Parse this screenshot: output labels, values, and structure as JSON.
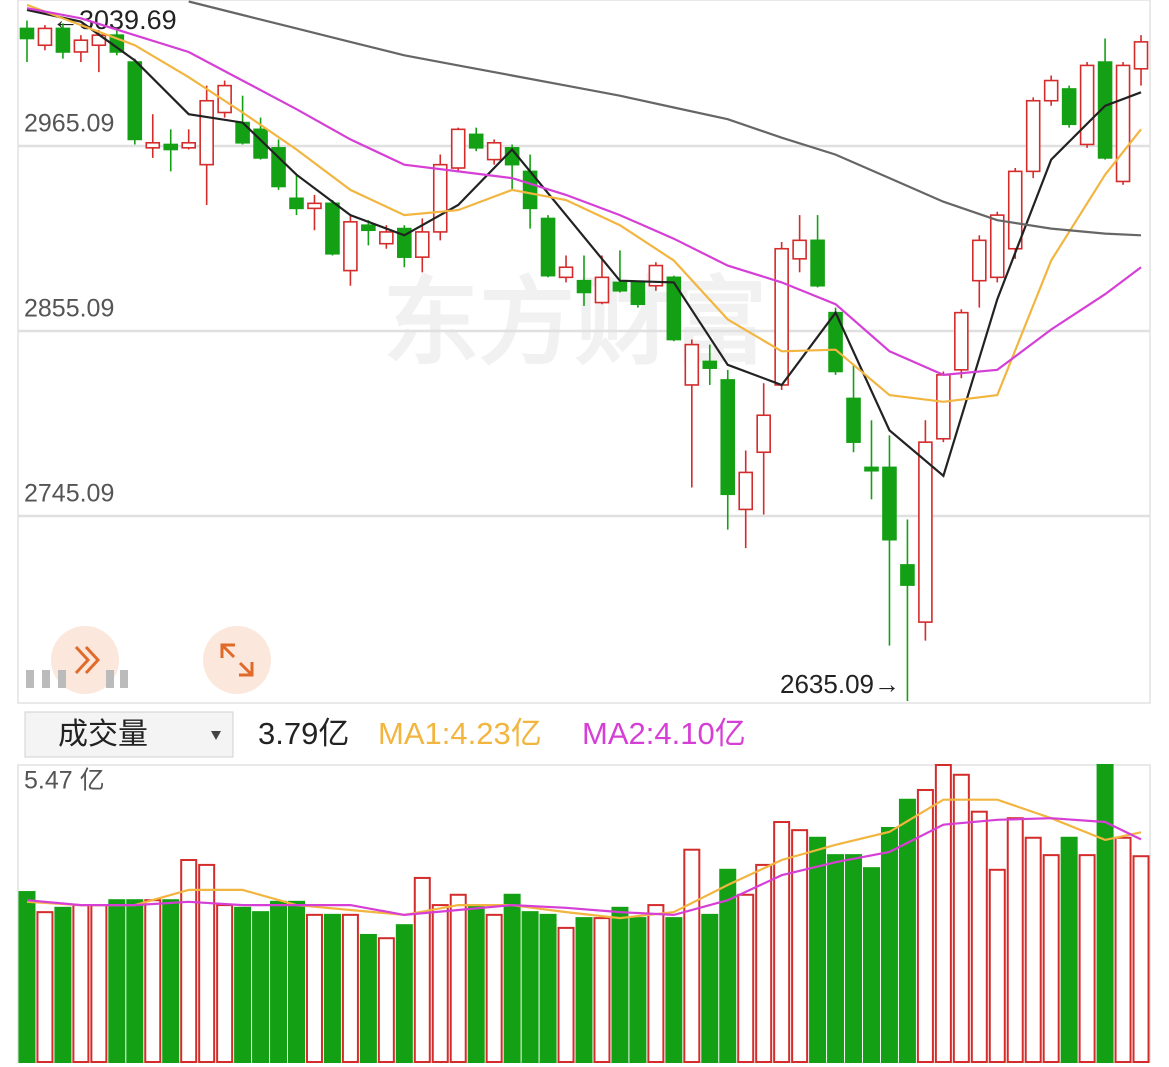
{
  "watermark": "东方财富",
  "chart_data": [
    {
      "type": "candlestick",
      "annotations": [
        {
          "text": "←3039.69"
        },
        {
          "text": "2635.09→"
        }
      ],
      "up_color": "#d42b2b",
      "down_color": "#14a014",
      "ylim": [
        2633.9,
        3051.9
      ],
      "yticks": [
        2965.09,
        2855.09,
        2745.09
      ],
      "grid": true,
      "open": [
        3035,
        3025,
        3035,
        3021,
        3025,
        3031,
        3015,
        2964,
        2966,
        2964,
        2954,
        2985,
        2979,
        2975,
        2964,
        2934,
        2928,
        2931,
        2891,
        2918,
        2907,
        2916,
        2899,
        2914,
        2952,
        2972,
        2957,
        2964,
        2950,
        2922,
        2887,
        2885,
        2872,
        2884,
        2884,
        2882,
        2887,
        2823,
        2837,
        2826,
        2749,
        2783,
        2823,
        2898,
        2909,
        2866,
        2815,
        2774,
        2774,
        2716,
        2682,
        2791,
        2832,
        2885,
        2887,
        2904,
        2950,
        2992,
        2999,
        2966,
        3015,
        2944,
        3011
      ],
      "high": [
        3039.69,
        3037,
        3038,
        3031,
        3034,
        3035,
        3017,
        2984,
        2975,
        2975,
        3001,
        3004,
        2995,
        2982,
        2969,
        2948,
        2936,
        2933,
        2924,
        2921,
        2918,
        2918,
        2922,
        2960,
        2976,
        2976,
        2969,
        2966,
        2960,
        2924,
        2900,
        2900,
        2900,
        2903,
        2885,
        2896,
        2888,
        2850,
        2847,
        2832,
        2784,
        2824,
        2908,
        2924,
        2924,
        2869,
        2835,
        2802,
        2793,
        2743,
        2802,
        2831,
        2868,
        2912,
        2926,
        2952,
        2994,
        3007,
        3001,
        3015,
        3029,
        3015,
        3031
      ],
      "low": [
        3015,
        3022,
        3017,
        3015,
        3009,
        3019,
        2966,
        2958,
        2950,
        2963,
        2930,
        2982,
        2966,
        2957,
        2939,
        2924,
        2915,
        2900,
        2882,
        2906,
        2904,
        2893,
        2890,
        2909,
        2950,
        2962,
        2954,
        2939,
        2916,
        2887,
        2884,
        2870,
        2871,
        2878,
        2869,
        2879,
        2849,
        2762,
        2823,
        2737,
        2726,
        2746,
        2820,
        2890,
        2881,
        2829,
        2783,
        2755,
        2668,
        2635.09,
        2671,
        2789,
        2827,
        2869,
        2884,
        2898,
        2946,
        2989,
        2976,
        2964,
        2957,
        2942,
        3001
      ],
      "close": [
        3029,
        3035,
        3021,
        3028,
        3031,
        3021,
        2969,
        2967,
        2963,
        2967,
        2992,
        3001,
        2967,
        2958,
        2941,
        2928,
        2931,
        2901,
        2920,
        2915,
        2914,
        2899,
        2914,
        2954,
        2975,
        2964,
        2967,
        2954,
        2928,
        2888,
        2893,
        2878,
        2887,
        2879,
        2871,
        2894,
        2850,
        2847,
        2833,
        2758,
        2771,
        2805,
        2904,
        2909,
        2882,
        2831,
        2789,
        2772,
        2731,
        2704,
        2789,
        2829,
        2866,
        2909,
        2924,
        2950,
        2992,
        3004,
        2978,
        3013,
        2958,
        3013,
        3027
      ],
      "series": [
        {
          "color": "#222222",
          "x": [
            0,
            3,
            6,
            9,
            12,
            15,
            18,
            21,
            24,
            27,
            30,
            33,
            36,
            39,
            42,
            45,
            48,
            51,
            54,
            57,
            60,
            62
          ],
          "values": [
            3046,
            3039,
            3016,
            2984,
            2979,
            2948,
            2924,
            2912,
            2930,
            2963,
            2924,
            2885,
            2884,
            2835,
            2823,
            2866,
            2796,
            2769,
            2874,
            2957,
            2989,
            2997
          ]
        },
        {
          "color": "#f2b540",
          "x": [
            0,
            3,
            6,
            9,
            12,
            15,
            18,
            21,
            24,
            27,
            30,
            33,
            36,
            39,
            42,
            45,
            48,
            51,
            54,
            57,
            60,
            62
          ],
          "values": [
            3049,
            3037,
            3025,
            3006,
            2985,
            2963,
            2939,
            2924,
            2927,
            2939,
            2933,
            2918,
            2897,
            2862,
            2843,
            2844,
            2817,
            2813,
            2817,
            2897,
            2948,
            2975
          ]
        },
        {
          "color": "#d63fd6",
          "x": [
            0,
            3,
            6,
            9,
            12,
            15,
            18,
            21,
            24,
            27,
            30,
            33,
            36,
            39,
            42,
            45,
            48,
            51,
            54,
            57,
            60,
            62
          ],
          "values": [
            3047,
            3041,
            3031,
            3021,
            3004,
            2987,
            2969,
            2954,
            2950,
            2946,
            2936,
            2924,
            2910,
            2894,
            2884,
            2871,
            2843,
            2829,
            2832,
            2856,
            2877,
            2893
          ]
        },
        {
          "color": "#666666",
          "x": [
            0,
            3,
            6,
            9,
            12,
            15,
            18,
            21,
            24,
            27,
            30,
            33,
            36,
            39,
            42,
            45,
            48,
            51,
            54,
            57,
            60,
            62
          ],
          "values": [
            null,
            null,
            null,
            3051,
            3043,
            3035,
            3027,
            3019,
            3013,
            3007,
            3001,
            2995,
            2988,
            2981,
            2970,
            2960,
            2946,
            2932,
            2921,
            2916,
            2913,
            2912
          ]
        }
      ]
    },
    {
      "type": "bar",
      "title": "成交量",
      "current_label": "3.79亿",
      "ylim": [
        0,
        5.47
      ],
      "yticks": [
        {
          "value": 5.47,
          "label": "5.47 亿"
        }
      ],
      "values": [
        3.13,
        2.76,
        2.84,
        2.89,
        2.89,
        2.98,
        2.98,
        2.98,
        2.98,
        3.72,
        3.63,
        2.89,
        2.84,
        2.76,
        2.95,
        2.95,
        2.71,
        2.71,
        2.71,
        2.34,
        2.28,
        2.52,
        3.39,
        2.89,
        3.08,
        2.89,
        2.71,
        3.08,
        2.76,
        2.71,
        2.47,
        2.65,
        2.65,
        2.84,
        2.65,
        2.89,
        2.65,
        3.91,
        2.71,
        3.54,
        3.08,
        3.63,
        4.42,
        4.27,
        4.13,
        3.81,
        3.81,
        3.57,
        4.31,
        4.83,
        5.01,
        5.47,
        5.29,
        4.61,
        3.54,
        4.49,
        4.13,
        3.81,
        4.13,
        3.81,
        5.47,
        4.13,
        3.79
      ],
      "series": [
        {
          "name": "MA1:4.23亿",
          "color": "#f2b540",
          "x": [
            0,
            3,
            6,
            9,
            12,
            15,
            18,
            21,
            24,
            27,
            30,
            33,
            36,
            39,
            42,
            45,
            48,
            51,
            54,
            57,
            60,
            62
          ],
          "values": [
            2.95,
            2.89,
            2.89,
            3.17,
            3.17,
            2.89,
            2.8,
            2.71,
            2.89,
            2.89,
            2.76,
            2.65,
            2.76,
            3.26,
            3.72,
            4.0,
            4.24,
            4.83,
            4.83,
            4.49,
            4.09,
            4.23
          ]
        },
        {
          "name": "MA2:4.10亿",
          "color": "#d63fd6",
          "x": [
            0,
            3,
            6,
            9,
            12,
            15,
            18,
            21,
            24,
            27,
            30,
            33,
            36,
            39,
            42,
            45,
            48,
            51,
            54,
            57,
            60,
            62
          ],
          "values": [
            2.98,
            2.89,
            2.89,
            2.95,
            2.89,
            2.89,
            2.89,
            2.71,
            2.8,
            2.89,
            2.84,
            2.76,
            2.71,
            2.98,
            3.44,
            3.68,
            3.87,
            4.37,
            4.46,
            4.49,
            4.42,
            4.1
          ]
        }
      ]
    }
  ]
}
